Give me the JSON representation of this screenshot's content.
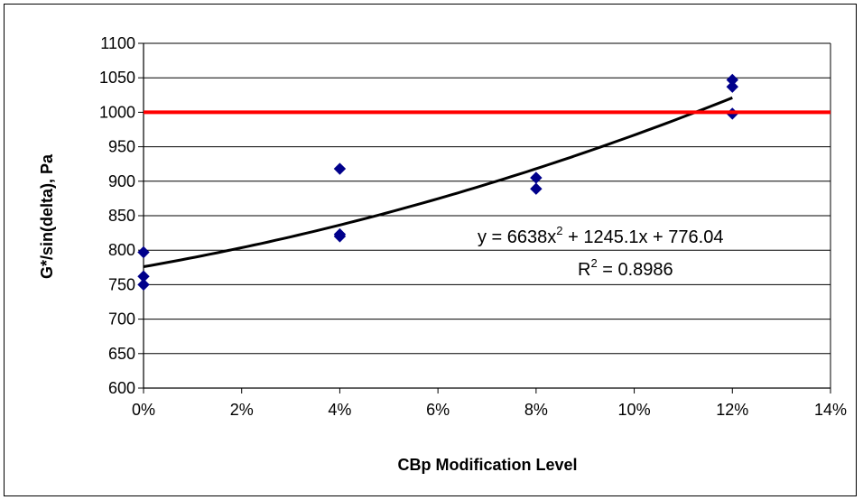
{
  "chart_data": {
    "type": "scatter",
    "xlabel": "CBp Modification Level",
    "ylabel": "G*/sin(delta), Pa",
    "xlim": [
      0,
      0.14
    ],
    "ylim": [
      600,
      1100
    ],
    "x_ticks": [
      0,
      0.02,
      0.04,
      0.06,
      0.08,
      0.1,
      0.12,
      0.14
    ],
    "x_tick_labels": [
      "0%",
      "2%",
      "4%",
      "6%",
      "8%",
      "10%",
      "12%",
      "14%"
    ],
    "y_ticks": [
      600,
      650,
      700,
      750,
      800,
      850,
      900,
      950,
      1000,
      1050,
      1100
    ],
    "y_tick_labels": [
      "600",
      "650",
      "700",
      "750",
      "800",
      "850",
      "900",
      "950",
      "1000",
      "1050",
      "1100"
    ],
    "grid": "horizontal",
    "series": [
      {
        "type": "scatter",
        "marker": "diamond",
        "color": "#00008B",
        "x": [
          0,
          0,
          0,
          0.04,
          0.04,
          0.04,
          0.08,
          0.08,
          0.12,
          0.12,
          0.12
        ],
        "y": [
          797,
          762,
          750,
          918,
          823,
          820,
          905,
          889,
          1047,
          1037,
          998
        ]
      },
      {
        "type": "trendline",
        "color": "#000000",
        "fit": "polynomial",
        "coefficients": {
          "a": 6638,
          "b": 1245.1,
          "c": 776.04
        },
        "x_range": [
          0,
          0.12
        ]
      },
      {
        "type": "reference-line",
        "color": "#FF0000",
        "y": 1000,
        "x_range": [
          0,
          0.14
        ]
      }
    ],
    "annotations": {
      "equation_prefix": "y = 6638x",
      "equation_exp": "2",
      "equation_suffix": " + 1245.1x + 776.04",
      "r2_prefix": "R",
      "r2_exp": "2",
      "r2_suffix": " = 0.8986"
    }
  }
}
